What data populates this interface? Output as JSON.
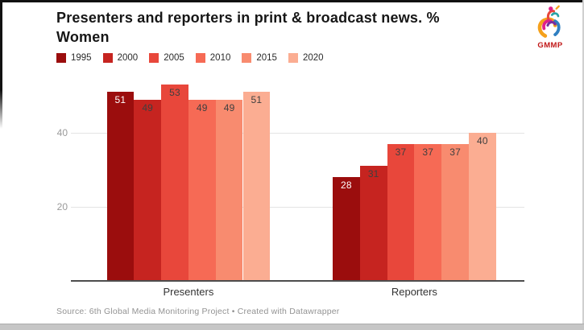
{
  "header": {
    "title": "Presenters and reporters in print & broadcast news. % Women",
    "logo_text": "GMMP"
  },
  "chart_data": {
    "type": "bar",
    "title": "Presenters and reporters in print & broadcast news. % Women",
    "categories": [
      "Presenters",
      "Reporters"
    ],
    "series": [
      {
        "name": "1995",
        "color": "#9b0d0d",
        "label_color": "#ffffff",
        "values": [
          51,
          28
        ]
      },
      {
        "name": "2000",
        "color": "#c62420",
        "label_color": "#3f3f3f",
        "values": [
          49,
          31
        ]
      },
      {
        "name": "2005",
        "color": "#e8473b",
        "label_color": "#3f3f3f",
        "values": [
          53,
          37
        ]
      },
      {
        "name": "2010",
        "color": "#f66a55",
        "label_color": "#3f3f3f",
        "values": [
          49,
          37
        ]
      },
      {
        "name": "2015",
        "color": "#f88b6f",
        "label_color": "#3f3f3f",
        "values": [
          49,
          37
        ]
      },
      {
        "name": "2020",
        "color": "#fbad92",
        "label_color": "#3f3f3f",
        "values": [
          51,
          40
        ]
      }
    ],
    "yticks": [
      20,
      40
    ],
    "ylim": [
      0,
      56
    ],
    "grid": true,
    "legend_position": "top",
    "xlabel": "",
    "ylabel": ""
  },
  "footer": {
    "source": "Source: 6th Global Media Monitoring Project • Created with Datawrapper"
  }
}
